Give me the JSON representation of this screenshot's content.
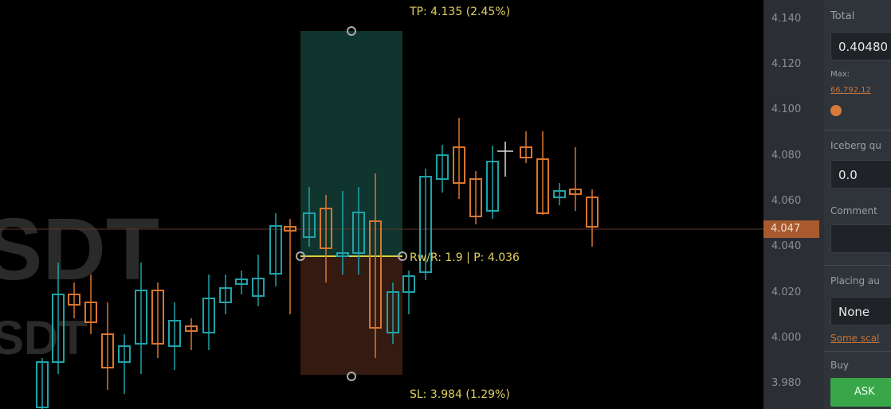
{
  "chart": {
    "symbol_watermark": "SDT",
    "symbol_watermark_small": "SDT",
    "tp_label": "TP: 4.135 (2.45%)",
    "sl_label": "SL: 3.984 (1.29%)",
    "rr_label": "Rw/R: 1.9 | P: 4.036",
    "current_price": "4.047",
    "up_color": "#1fa3a8",
    "down_color": "#d9762f"
  },
  "price_axis": {
    "ticks": [
      "4.140",
      "4.120",
      "4.100",
      "4.080",
      "4.060",
      "4.040",
      "4.020",
      "4.000",
      "3.980"
    ]
  },
  "order_panel": {
    "total_label": "Total",
    "total_value": "0.40480",
    "max_label": "Max:",
    "max_value": "66,792.12",
    "iceberg_label": "Iceberg qu",
    "iceberg_value": "0.0",
    "comment_label": "Comment",
    "comment_value": "",
    "placing_label": "Placing au",
    "placing_value": "None",
    "some_link": "Some scal",
    "buy_label": "Buy",
    "ask_label": "ASK"
  }
}
